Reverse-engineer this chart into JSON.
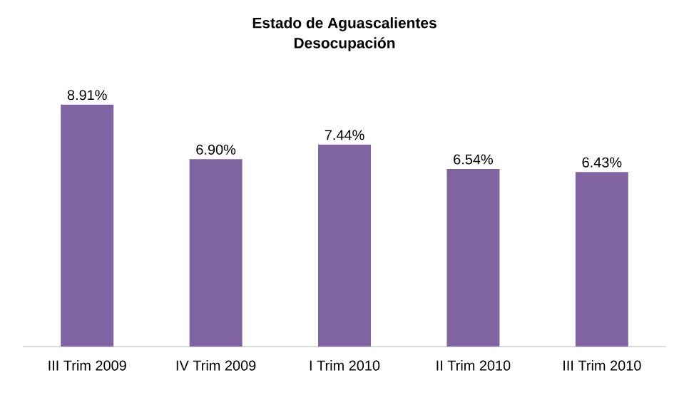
{
  "chart_data": {
    "type": "bar",
    "title": "Estado de Aguascalientes",
    "subtitle": "Desocupación",
    "categories": [
      "III Trim 2009",
      "IV Trim 2009",
      "I Trim 2010",
      "II Trim 2010",
      "III Trim 2010"
    ],
    "values": [
      8.91,
      6.9,
      7.44,
      6.54,
      6.43
    ],
    "value_labels": [
      "8.91%",
      "6.90%",
      "7.44%",
      "6.54%",
      "6.43%"
    ],
    "color": "#8064a2"
  }
}
